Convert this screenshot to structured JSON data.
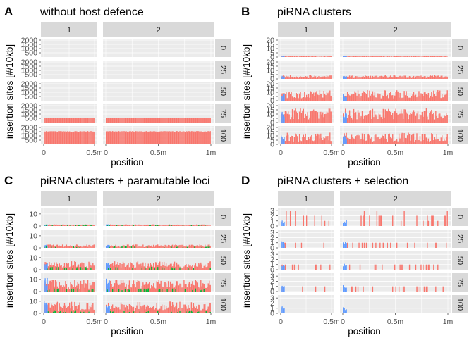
{
  "colors": {
    "strip": "#d9d9d9",
    "panel_bg": "#ebebeb",
    "grid": "#ffffff",
    "red": "#f8766d",
    "blue": "#619cff",
    "green": "#00ba38",
    "tick": "#4d4d4d"
  },
  "chart_data": [
    {
      "type": "bar",
      "panel_letter": "A",
      "title": "without host defence",
      "xlabel": "position",
      "ylabel": "insertion sites [#/10kb]",
      "col_facets": [
        "1",
        "2"
      ],
      "row_facets": [
        "0",
        "25",
        "50",
        "75",
        "100"
      ],
      "x_ticks": {
        "1": [
          "0",
          "0.5m"
        ],
        "2": [
          "0",
          "0.5m",
          "1m"
        ]
      },
      "y_ticks": [
        "500",
        "1000",
        "1500",
        "2000"
      ],
      "ylim": [
        0,
        2000
      ],
      "chromosome_length": {
        "1": 0.5,
        "2": 1.0
      },
      "series": [
        {
          "color": "red",
          "level": {
            "0": 0,
            "25": 0,
            "50": 0,
            "75": 520,
            "100": 1550
          }
        },
        {
          "color": "blue",
          "level": {
            "0": 0,
            "25": 0,
            "50": 0,
            "75": 0,
            "100": 0
          }
        }
      ]
    },
    {
      "type": "bar",
      "panel_letter": "B",
      "title": "piRNA clusters",
      "xlabel": "position",
      "ylabel": "insertion sites [#/10kb]",
      "col_facets": [
        "1",
        "2"
      ],
      "row_facets": [
        "0",
        "25",
        "50",
        "75",
        "100"
      ],
      "x_ticks": {
        "1": [
          "0",
          "0.5m"
        ],
        "2": [
          "0",
          "0.5m",
          "1m"
        ]
      },
      "y_ticks": [
        "0",
        "5",
        "10",
        "15",
        "20"
      ],
      "ylim": [
        0,
        20
      ],
      "chromosome_length": {
        "1": 0.5,
        "2": 1.0
      },
      "series": [
        {
          "color": "red",
          "level": {
            "0": 1,
            "25": 3,
            "50": 9,
            "75": 12,
            "100": 10
          }
        },
        {
          "color": "blue",
          "level": {
            "0": 1,
            "25": 3,
            "50": 6,
            "75": 9,
            "100": 8
          }
        }
      ]
    },
    {
      "type": "bar",
      "panel_letter": "C",
      "title": "piRNA clusters + paramutable loci",
      "xlabel": "position",
      "ylabel": "insertion sites [#/10kb]",
      "col_facets": [
        "1",
        "2"
      ],
      "row_facets": [
        "0",
        "25",
        "50",
        "75",
        "100"
      ],
      "x_ticks": {
        "1": [
          "0",
          "0.5m"
        ],
        "2": [
          "0",
          "0.5m",
          "1m"
        ]
      },
      "y_ticks": [
        "0",
        "10"
      ],
      "ylim": [
        0,
        14
      ],
      "chromosome_length": {
        "1": 0.5,
        "2": 1.0
      },
      "series": [
        {
          "color": "red",
          "level": {
            "0": 1,
            "25": 2,
            "50": 5,
            "75": 7,
            "100": 7
          }
        },
        {
          "color": "blue",
          "level": {
            "0": 1,
            "25": 2,
            "50": 5,
            "75": 8,
            "100": 8
          }
        },
        {
          "color": "green",
          "level": {
            "0": 1,
            "25": 1,
            "50": 2,
            "75": 2,
            "100": 2
          }
        }
      ]
    },
    {
      "type": "bar",
      "panel_letter": "D",
      "title": "piRNA clusters + selection",
      "xlabel": "position",
      "ylabel": "insertion sites [#/10kb]",
      "col_facets": [
        "1",
        "2"
      ],
      "row_facets": [
        "0",
        "25",
        "50",
        "75",
        "100"
      ],
      "x_ticks": {
        "1": [
          "0",
          "0.5m"
        ],
        "2": [
          "0",
          "0.5m",
          "1m"
        ]
      },
      "y_ticks": [
        "0",
        "1",
        "2",
        "3"
      ],
      "ylim": [
        0,
        3.3
      ],
      "chromosome_length": {
        "1": 0.5,
        "2": 1.0
      },
      "series": [
        {
          "color": "red",
          "level": {
            "0": 2,
            "25": 1,
            "50": 1,
            "75": 1,
            "100": 0
          }
        },
        {
          "color": "blue",
          "level": {
            "0": 1,
            "25": 1,
            "50": 1,
            "75": 1,
            "100": 1
          }
        }
      ]
    }
  ]
}
